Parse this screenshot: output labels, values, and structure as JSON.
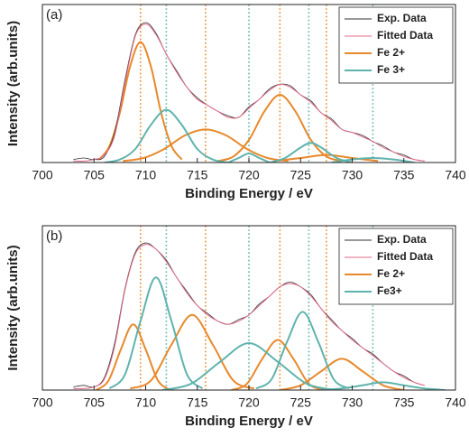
{
  "chart_data": [
    {
      "type": "line",
      "label": "(a)",
      "xlabel": "Binding Energy / eV",
      "ylabel": "Intensity (arb.units)",
      "xlim": [
        700,
        740
      ],
      "xticks": [
        700,
        705,
        710,
        715,
        720,
        725,
        730,
        735,
        740
      ],
      "ylim": [
        0,
        1.05
      ],
      "legend": "upper right",
      "series": [
        {
          "name": "Exp. Data",
          "color": "#333333",
          "x": [
            703,
            704,
            705,
            706,
            707,
            708,
            709,
            710,
            711,
            712,
            713,
            714,
            715,
            716,
            717,
            718,
            719,
            720,
            721,
            722,
            723,
            724,
            725,
            726,
            727,
            728,
            729,
            730,
            731,
            732,
            733,
            734,
            735,
            736,
            737
          ],
          "values": [
            0.02,
            0.03,
            0.02,
            0.04,
            0.2,
            0.55,
            0.85,
            0.93,
            0.86,
            0.72,
            0.61,
            0.5,
            0.43,
            0.38,
            0.34,
            0.31,
            0.3,
            0.37,
            0.42,
            0.49,
            0.52,
            0.51,
            0.45,
            0.41,
            0.33,
            0.29,
            0.22,
            0.2,
            0.18,
            0.14,
            0.11,
            0.07,
            0.05,
            0.02,
            0.01
          ]
        },
        {
          "name": "Fitted Data",
          "color": "#e06a86",
          "x": [
            703,
            704,
            705,
            706,
            707,
            708,
            709,
            710,
            711,
            712,
            713,
            714,
            715,
            716,
            717,
            718,
            719,
            720,
            721,
            722,
            723,
            724,
            725,
            726,
            727,
            728,
            729,
            730,
            731,
            732,
            733,
            734,
            735,
            736,
            737
          ],
          "values": [
            0.01,
            0.01,
            0.02,
            0.05,
            0.18,
            0.53,
            0.84,
            0.92,
            0.85,
            0.72,
            0.6,
            0.5,
            0.42,
            0.38,
            0.34,
            0.3,
            0.3,
            0.36,
            0.42,
            0.48,
            0.52,
            0.5,
            0.45,
            0.4,
            0.33,
            0.28,
            0.22,
            0.2,
            0.17,
            0.14,
            0.1,
            0.07,
            0.04,
            0.02,
            0.01
          ]
        },
        {
          "name": "Fe 2+",
          "color": "#e8892b",
          "reference_lines": [
            709.5,
            715.8,
            723,
            727.5
          ],
          "peaks": [
            {
              "x": [
                705.5,
                706.5,
                707.5,
                708.5,
                709.5,
                710.5,
                711.5,
                712.5,
                713.5
              ],
              "values": [
                0.02,
                0.11,
                0.33,
                0.64,
                0.8,
                0.64,
                0.33,
                0.11,
                0.02
              ]
            },
            {
              "x": [
                707.8,
                709.8,
                711.8,
                713.8,
                715.8,
                717.8,
                719.8,
                721.8,
                723.8
              ],
              "values": [
                0.01,
                0.03,
                0.09,
                0.18,
                0.22,
                0.18,
                0.09,
                0.03,
                0.01
              ]
            },
            {
              "x": [
                717,
                718.5,
                720,
                721.5,
                723,
                724.5,
                726,
                727.5,
                729
              ],
              "values": [
                0.01,
                0.04,
                0.15,
                0.34,
                0.45,
                0.34,
                0.15,
                0.04,
                0.01
              ]
            },
            {
              "x": [
                722.5,
                725,
                727.5,
                730,
                732.5
              ],
              "values": [
                0.01,
                0.03,
                0.05,
                0.03,
                0.01
              ]
            }
          ]
        },
        {
          "name": "Fe 3+",
          "color": "#5fb3ad",
          "reference_lines": [
            712,
            720,
            725.8,
            732
          ],
          "peaks": [
            {
              "x": [
                706,
                707.5,
                709,
                710.5,
                712,
                713.5,
                715,
                716.5,
                718
              ],
              "values": [
                0,
                0.02,
                0.09,
                0.25,
                0.35,
                0.25,
                0.09,
                0.02,
                0
              ]
            },
            {
              "x": [
                718,
                719,
                720,
                721,
                722
              ],
              "values": [
                0,
                0.03,
                0.06,
                0.03,
                0
              ]
            },
            {
              "x": [
                722,
                723.5,
                725,
                726,
                727,
                728.5,
                730
              ],
              "values": [
                0,
                0.03,
                0.1,
                0.13,
                0.1,
                0.03,
                0
              ]
            },
            {
              "x": [
                728,
                730,
                732,
                734,
                736
              ],
              "values": [
                0,
                0.02,
                0.03,
                0.02,
                0
              ]
            }
          ]
        }
      ]
    },
    {
      "type": "line",
      "label": "(b)",
      "xlabel": "Binding Energy / eV",
      "ylabel": "Intensity (arb.units)",
      "xlim": [
        700,
        740
      ],
      "xticks": [
        700,
        705,
        710,
        715,
        720,
        725,
        730,
        735,
        740
      ],
      "ylim": [
        0,
        1.05
      ],
      "legend": "upper right",
      "series": [
        {
          "name": "Exp. Data",
          "color": "#333333",
          "x": [
            703,
            704,
            705,
            706,
            707,
            708,
            709,
            710,
            711,
            712,
            713,
            714,
            715,
            716,
            717,
            718,
            719,
            720,
            721,
            722,
            723,
            724,
            725,
            726,
            727,
            728,
            729,
            730,
            731,
            732,
            733,
            734,
            735,
            736,
            737
          ],
          "values": [
            0.02,
            0.03,
            0.02,
            0.08,
            0.3,
            0.65,
            0.88,
            0.94,
            0.9,
            0.83,
            0.72,
            0.63,
            0.54,
            0.49,
            0.44,
            0.42,
            0.45,
            0.48,
            0.55,
            0.6,
            0.66,
            0.69,
            0.66,
            0.61,
            0.52,
            0.45,
            0.38,
            0.33,
            0.27,
            0.23,
            0.17,
            0.12,
            0.09,
            0.05,
            0.03
          ]
        },
        {
          "name": "Fitted Data",
          "color": "#e06a86",
          "x": [
            703,
            704,
            705,
            706,
            707,
            708,
            709,
            710,
            711,
            712,
            713,
            714,
            715,
            716,
            717,
            718,
            719,
            720,
            721,
            722,
            723,
            724,
            725,
            726,
            727,
            728,
            729,
            730,
            731,
            732,
            733,
            734,
            735,
            736,
            737
          ],
          "values": [
            0.01,
            0.01,
            0.02,
            0.07,
            0.28,
            0.64,
            0.87,
            0.93,
            0.9,
            0.82,
            0.72,
            0.62,
            0.54,
            0.48,
            0.44,
            0.42,
            0.44,
            0.48,
            0.54,
            0.6,
            0.66,
            0.68,
            0.66,
            0.6,
            0.52,
            0.44,
            0.38,
            0.32,
            0.27,
            0.22,
            0.17,
            0.12,
            0.08,
            0.05,
            0.03
          ]
        },
        {
          "name": "Fe 2+",
          "color": "#e8892b",
          "reference_lines": [
            709.5,
            715.8,
            723,
            727.5
          ],
          "peaks": [
            {
              "x": [
                705.2,
                706.4,
                707.6,
                708.8,
                710,
                711.2,
                712.4
              ],
              "values": [
                0,
                0.06,
                0.26,
                0.42,
                0.26,
                0.06,
                0
              ]
            },
            {
              "x": [
                708.5,
                710.5,
                712.5,
                714.5,
                716.5,
                718.5,
                720.5
              ],
              "values": [
                0.01,
                0.06,
                0.29,
                0.48,
                0.29,
                0.06,
                0.01
              ]
            },
            {
              "x": [
                718.3,
                719.8,
                721.3,
                722.8,
                724.3,
                725.8,
                727.3
              ],
              "values": [
                0,
                0.04,
                0.2,
                0.32,
                0.2,
                0.04,
                0
              ]
            },
            {
              "x": [
                723,
                725,
                727,
                729,
                731,
                733,
                735
              ],
              "values": [
                0,
                0.03,
                0.12,
                0.2,
                0.12,
                0.03,
                0
              ]
            }
          ]
        },
        {
          "name": "Fe3+",
          "color": "#5fb3ad",
          "reference_lines": [
            712,
            720,
            725.8,
            732
          ],
          "peaks": [
            {
              "x": [
                706.5,
                708,
                709.5,
                711,
                712.5,
                714,
                715.5
              ],
              "values": [
                0.01,
                0.1,
                0.44,
                0.72,
                0.44,
                0.1,
                0.01
              ]
            },
            {
              "x": [
                711.6,
                714.4,
                717.2,
                720,
                722.8,
                725.6,
                728.4
              ],
              "values": [
                0,
                0.04,
                0.18,
                0.3,
                0.18,
                0.04,
                0
              ]
            },
            {
              "x": [
                720.7,
                722.2,
                723.7,
                725.2,
                726.7,
                728.2,
                729.7
              ],
              "values": [
                0.01,
                0.07,
                0.31,
                0.5,
                0.31,
                0.07,
                0.01
              ]
            },
            {
              "x": [
                727,
                729,
                731,
                733,
                735,
                737,
                739
              ],
              "values": [
                0,
                0.01,
                0.03,
                0.05,
                0.03,
                0.01,
                0
              ]
            }
          ]
        }
      ]
    }
  ]
}
